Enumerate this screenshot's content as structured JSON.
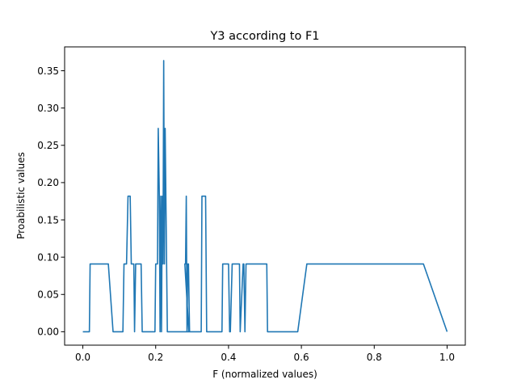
{
  "chart_data": {
    "type": "line",
    "title": "Y3 according to F1",
    "xlabel": "F (normalized values)",
    "ylabel": "Proabilistic values",
    "xlim": [
      -0.05,
      1.05
    ],
    "ylim": [
      -0.018,
      0.382
    ],
    "xticks": [
      0.0,
      0.2,
      0.4,
      0.6,
      0.8,
      1.0
    ],
    "xtick_labels": [
      "0.0",
      "0.2",
      "0.4",
      "0.6",
      "0.8",
      "1.0"
    ],
    "yticks": [
      0.0,
      0.05,
      0.1,
      0.15,
      0.2,
      0.25,
      0.3,
      0.35
    ],
    "ytick_labels": [
      "0.00",
      "0.05",
      "0.10",
      "0.15",
      "0.20",
      "0.25",
      "0.30",
      "0.35"
    ],
    "grid": false,
    "series": [
      {
        "color": "#1f77b4",
        "x": [
          0.0,
          0.018,
          0.02,
          0.07,
          0.083,
          0.11,
          0.113,
          0.12,
          0.124,
          0.13,
          0.133,
          0.14,
          0.142,
          0.145,
          0.148,
          0.16,
          0.163,
          0.198,
          0.2,
          0.205,
          0.207,
          0.21,
          0.212,
          0.214,
          0.216,
          0.218,
          0.22,
          0.222,
          0.224,
          0.226,
          0.228,
          0.23,
          0.232,
          0.29,
          0.291,
          0.28,
          0.282,
          0.284,
          0.286,
          0.288,
          0.29,
          0.293,
          0.325,
          0.327,
          0.337,
          0.34,
          0.382,
          0.384,
          0.4,
          0.403,
          0.405,
          0.41,
          0.413,
          0.43,
          0.432,
          0.44,
          0.442,
          0.445,
          0.448,
          0.505,
          0.507,
          0.59,
          0.615,
          0.935,
          1.0
        ],
        "y": [
          0.0,
          0.0,
          0.0909,
          0.0909,
          0.0,
          0.0,
          0.0909,
          0.0909,
          0.1818,
          0.1818,
          0.0909,
          0.0909,
          0.0,
          0.0909,
          0.0909,
          0.0909,
          0.0,
          0.0,
          0.0909,
          0.0909,
          0.2727,
          0.1818,
          0.0,
          0.1818,
          0.0,
          0.1818,
          0.0909,
          0.3636,
          0.0909,
          0.2727,
          0.1818,
          0.0909,
          0.0,
          0.0,
          0.0,
          0.0909,
          0.0909,
          0.1818,
          0.0,
          0.0909,
          0.0909,
          0.0,
          0.0,
          0.1818,
          0.1818,
          0.0,
          0.0,
          0.0909,
          0.0909,
          0.0,
          0.0,
          0.0909,
          0.0909,
          0.0909,
          0.0,
          0.0909,
          0.0909,
          0.0,
          0.0909,
          0.0909,
          0.0,
          0.0,
          0.0909,
          0.0909,
          0.0
        ]
      }
    ]
  }
}
